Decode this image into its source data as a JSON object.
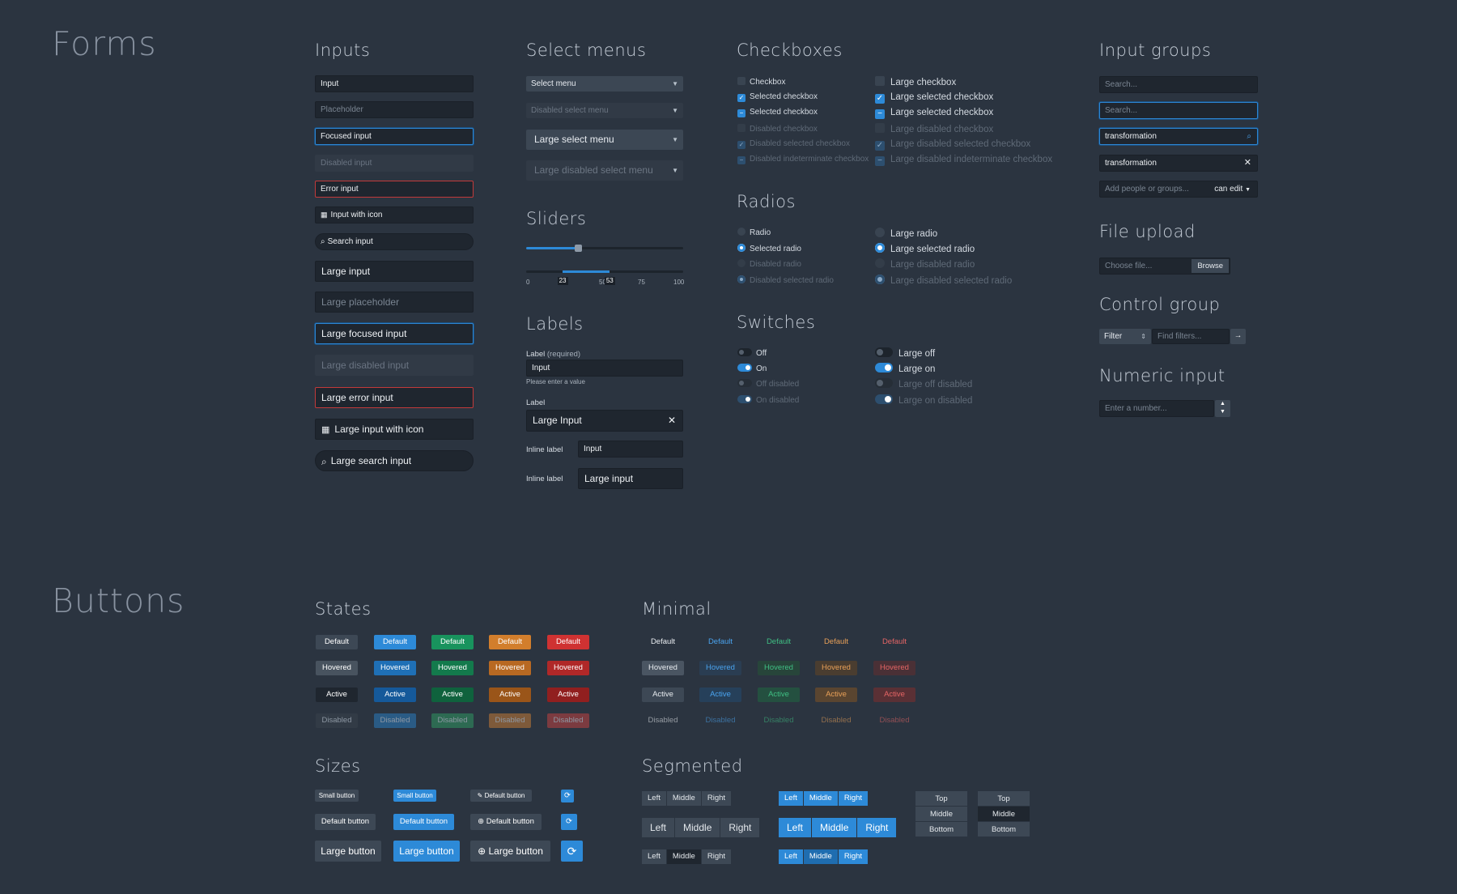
{
  "forms": {
    "title": "Forms",
    "inputs": {
      "title": "Inputs",
      "input": "Input",
      "placeholder": "Placeholder",
      "focused": "Focused input",
      "disabled": "Disabled input",
      "error": "Error input",
      "with_icon": "Input with icon",
      "search": "Search input",
      "large": "Large input",
      "large_placeholder": "Large placeholder",
      "large_focused": "Large focused input",
      "large_disabled": "Large disabled input",
      "large_error": "Large error input",
      "large_with_icon": "Large input with icon",
      "large_search": "Large search input"
    },
    "select": {
      "title": "Select menus",
      "menu": "Select menu",
      "disabled": "Disabled select menu",
      "large": "Large select menu",
      "large_disabled": "Large disabled select menu"
    },
    "sliders": {
      "title": "Sliders",
      "value": 0.33,
      "range": [
        23,
        53
      ],
      "ticks": [
        "0",
        "25",
        "50",
        "75",
        "100"
      ],
      "handle_labels": [
        "23",
        "53"
      ]
    },
    "labels": {
      "title": "Labels",
      "label1": "Label",
      "required": "(required)",
      "input1": "Input",
      "helper": "Please enter a value",
      "label2": "Label",
      "input2": "Large Input",
      "inline1": "Inline label",
      "inline_input1": "Input",
      "inline2": "Inline label",
      "inline_input2": "Large input"
    },
    "checkboxes": {
      "title": "Checkboxes",
      "small": [
        "Checkbox",
        "Selected checkbox",
        "Selected checkbox",
        "Disabled checkbox",
        "Disabled selected checkbox",
        "Disabled indeterminate checkbox"
      ],
      "large": [
        "Large checkbox",
        "Large selected checkbox",
        "Large selected checkbox",
        "Large disabled checkbox",
        "Large disabled selected checkbox",
        "Large disabled indeterminate checkbox"
      ]
    },
    "radios": {
      "title": "Radios",
      "small": [
        "Radio",
        "Selected radio",
        "Disabled radio",
        "Disabled selected radio"
      ],
      "large": [
        "Large radio",
        "Large selected radio",
        "Large disabled radio",
        "Large disabled selected radio"
      ]
    },
    "switches": {
      "title": "Switches",
      "small": [
        "Off",
        "On",
        "Off disabled",
        "On disabled"
      ],
      "large": [
        "Large off",
        "Large on",
        "Large off disabled",
        "Large on disabled"
      ]
    },
    "input_groups": {
      "title": "Input groups",
      "search1": "Search...",
      "search2": "Search...",
      "value1": "transformation",
      "value2": "transformation",
      "people_placeholder": "Add people or groups...",
      "permission": "can edit"
    },
    "file_upload": {
      "title": "File upload",
      "placeholder": "Choose file...",
      "browse": "Browse"
    },
    "control_group": {
      "title": "Control group",
      "filter": "Filter",
      "placeholder": "Find filters..."
    },
    "numeric": {
      "title": "Numeric input",
      "placeholder": "Enter a number..."
    }
  },
  "buttons": {
    "title": "Buttons",
    "states": {
      "title": "States",
      "rows": [
        [
          "Default",
          "Default",
          "Default",
          "Default",
          "Default"
        ],
        [
          "Hovered",
          "Hovered",
          "Hovered",
          "Hovered",
          "Hovered"
        ],
        [
          "Active",
          "Active",
          "Active",
          "Active",
          "Active"
        ],
        [
          "Disabled",
          "Disabled",
          "Disabled",
          "Disabled",
          "Disabled"
        ]
      ]
    },
    "minimal": {
      "title": "Minimal",
      "rows": [
        [
          "Default",
          "Default",
          "Default",
          "Default",
          "Default"
        ],
        [
          "Hovered",
          "Hovered",
          "Hovered",
          "Hovered",
          "Hovered"
        ],
        [
          "Active",
          "Active",
          "Active",
          "Active",
          "Active"
        ],
        [
          "Disabled",
          "Disabled",
          "Disabled",
          "Disabled",
          "Disabled"
        ]
      ]
    },
    "sizes": {
      "title": "Sizes",
      "small": "Small button",
      "default": "Default button",
      "large": "Large button"
    },
    "segmented": {
      "title": "Segmented",
      "h": [
        "Left",
        "Middle",
        "Right"
      ],
      "v": [
        "Top",
        "Middle",
        "Bottom"
      ]
    }
  },
  "colors": {
    "bg": "#2b3440",
    "primary": "#2d8ad8",
    "success": "#18935d",
    "warning": "#d27e2c",
    "danger": "#cf3232"
  }
}
